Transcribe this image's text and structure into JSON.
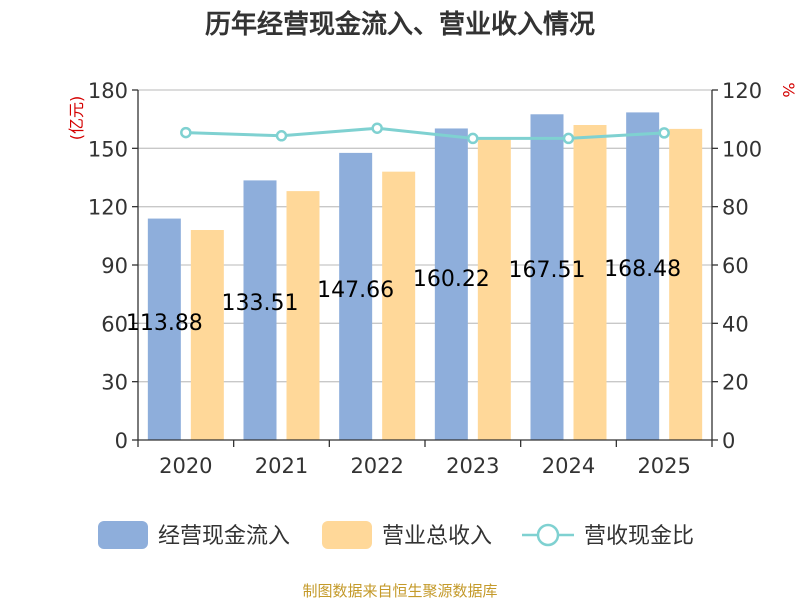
{
  "chart_data": {
    "type": "bar",
    "title": "历年经营现金流入、营业收入情况",
    "categories": [
      "2020",
      "2021",
      "2022",
      "2023",
      "2024",
      "2025"
    ],
    "left_axis": {
      "unit": "(亿元)",
      "ticks": [
        0,
        30,
        60,
        90,
        120,
        150,
        180
      ],
      "ylim": [
        0,
        180
      ]
    },
    "right_axis": {
      "unit": "%",
      "ticks": [
        0,
        20,
        40,
        60,
        80,
        100,
        120
      ],
      "ylim": [
        0,
        120
      ]
    },
    "series": [
      {
        "name": "经营现金流入",
        "type": "bar",
        "axis": "left",
        "color": "#8eaedb",
        "values": [
          113.88,
          133.51,
          147.66,
          160.22,
          167.51,
          168.48
        ],
        "labels": [
          "113.88",
          "133.51",
          "147.66",
          "160.22",
          "167.51",
          "168.48"
        ]
      },
      {
        "name": "营业总收入",
        "type": "bar",
        "axis": "left",
        "color": "#ffd899",
        "values": [
          108,
          128,
          138,
          155,
          162,
          160
        ]
      },
      {
        "name": "营收现金比",
        "type": "line",
        "axis": "right",
        "color": "#7fd1d1",
        "values": [
          105.4,
          104.3,
          106.9,
          103.4,
          103.4,
          105.3
        ]
      }
    ],
    "grid": true,
    "legend_position": "bottom"
  },
  "footer": {
    "source": "制图数据来自恒生聚源数据库"
  }
}
